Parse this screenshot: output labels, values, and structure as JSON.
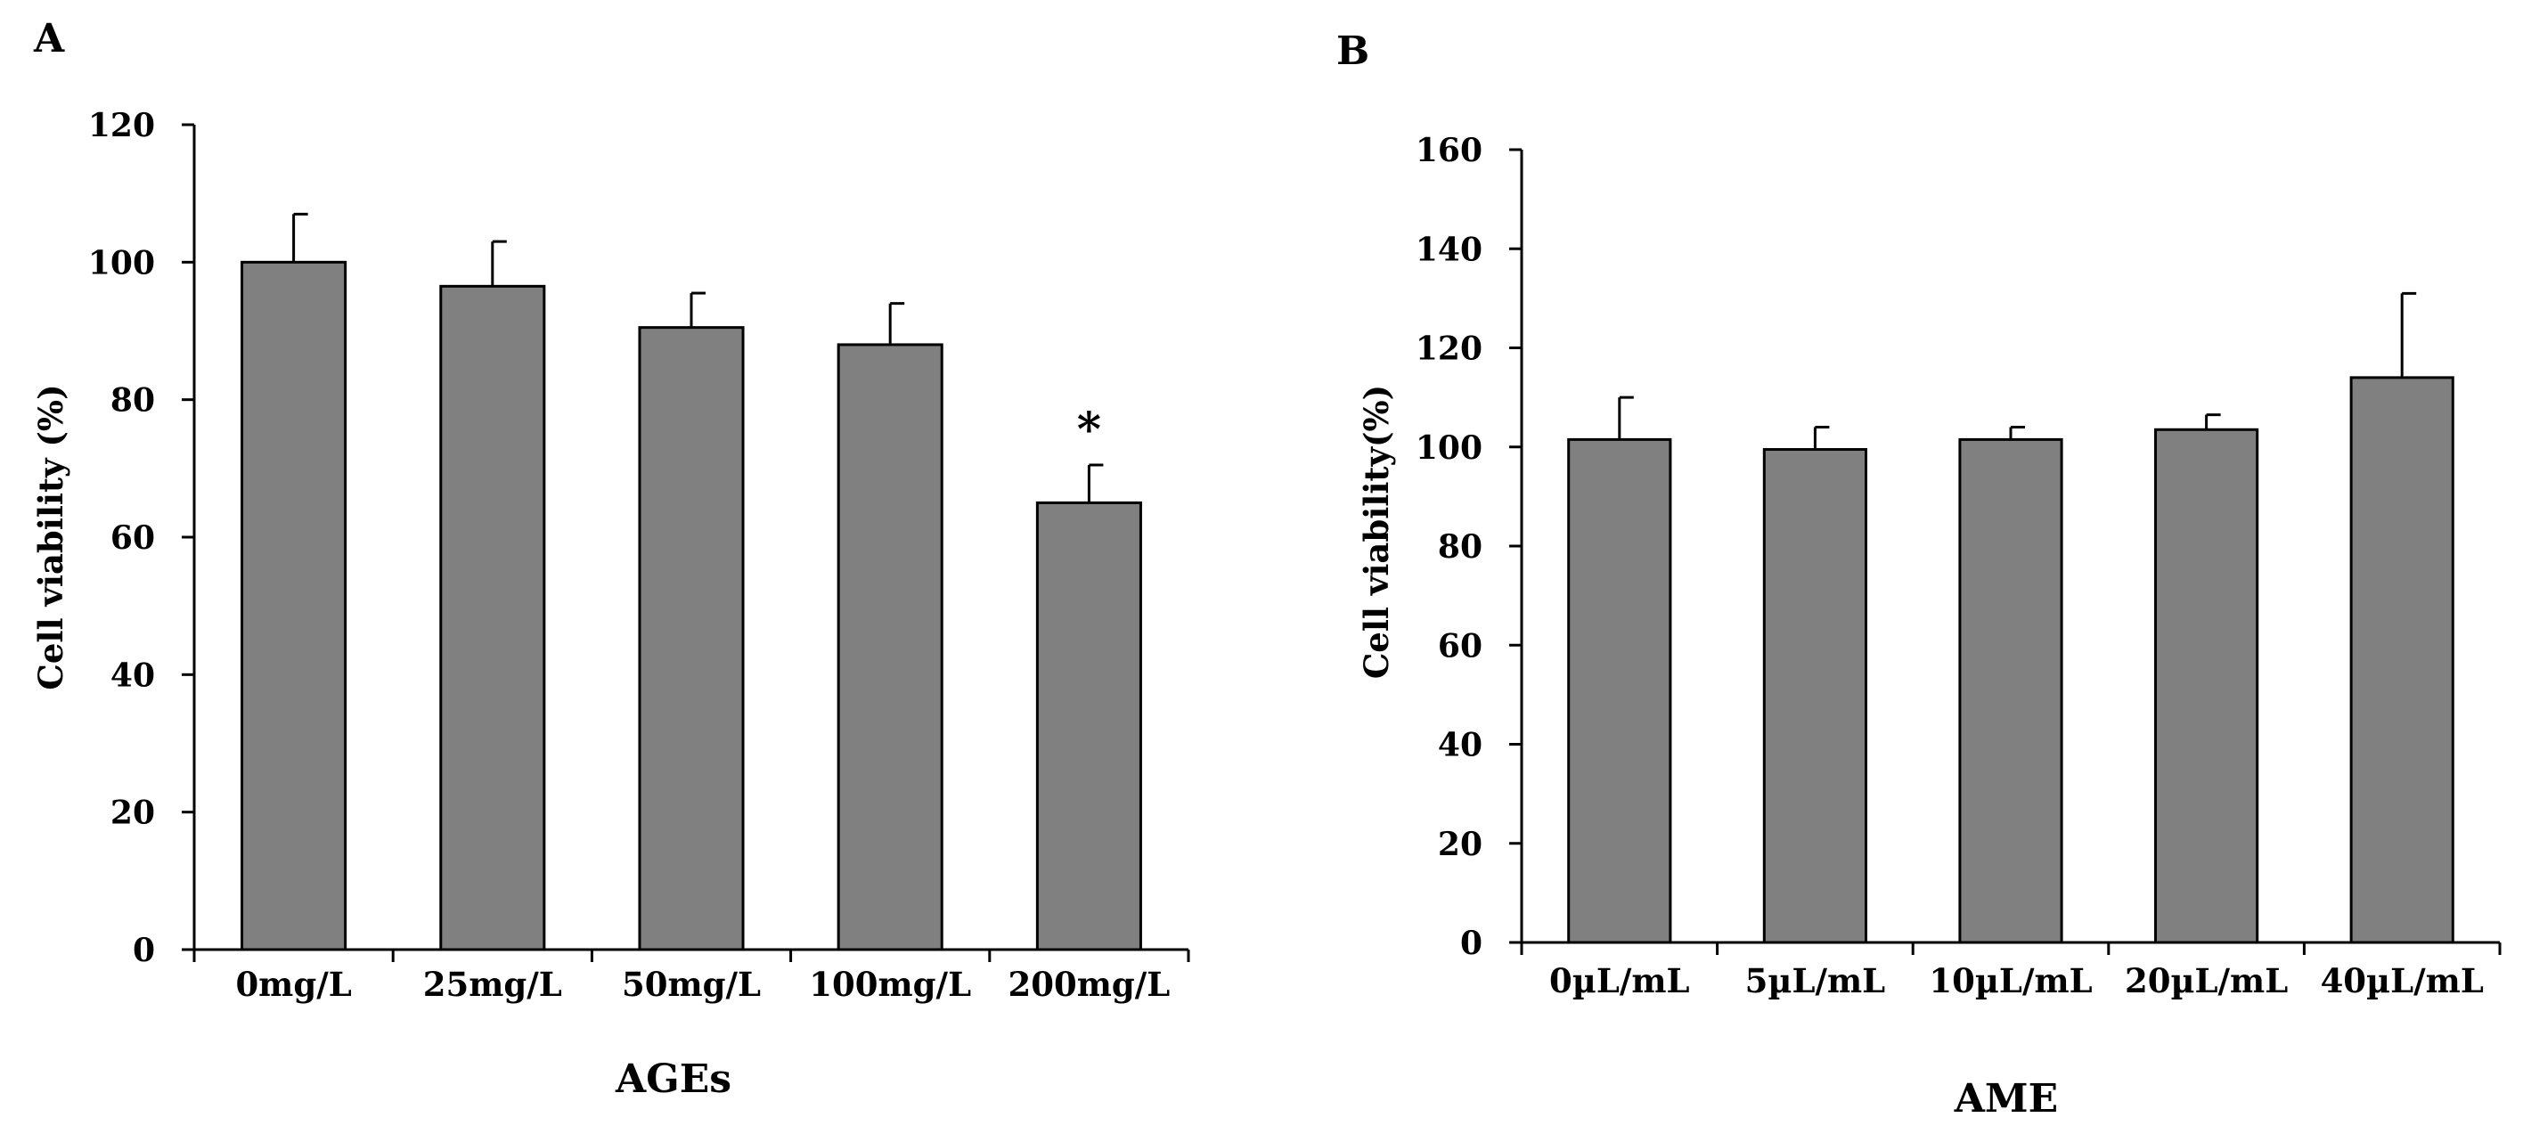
{
  "panels": [
    {
      "letter": "A"
    },
    {
      "letter": "B"
    }
  ],
  "chart_data": [
    {
      "type": "bar",
      "panel": "A",
      "categories": [
        "0mg/L",
        "25mg/L",
        "50mg/L",
        "100mg/L",
        "200mg/L"
      ],
      "values": [
        100,
        96.5,
        90.5,
        88,
        65
      ],
      "error": [
        7,
        6.5,
        5,
        6,
        5.5
      ],
      "annotations": [
        "",
        "",
        "",
        "",
        "*"
      ],
      "ylabel": "Cell viability (%)",
      "xlabel": "AGEs",
      "ylim": [
        0,
        120
      ],
      "yticks": [
        0,
        20,
        40,
        60,
        80,
        100,
        120
      ],
      "bar_color": "#808080",
      "grid": false
    },
    {
      "type": "bar",
      "panel": "B",
      "categories": [
        "0µL/mL",
        "5µL/mL",
        "10µL/mL",
        "20µL/mL",
        "40µL/mL"
      ],
      "values": [
        101.5,
        99.5,
        101.5,
        103.5,
        114
      ],
      "error": [
        8.5,
        4.5,
        2.5,
        3,
        17
      ],
      "annotations": [
        "",
        "",
        "",
        "",
        ""
      ],
      "ylabel": "Cell viability(%)",
      "xlabel": "AME",
      "ylim": [
        0,
        160
      ],
      "yticks": [
        0,
        20,
        40,
        60,
        80,
        100,
        120,
        140,
        160
      ],
      "bar_color": "#808080",
      "grid": false
    }
  ]
}
